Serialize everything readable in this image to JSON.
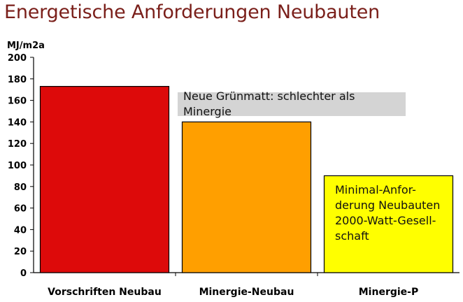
{
  "title": "Energetische Anforderungen Neubauten",
  "unit_label": "MJ/m2a",
  "annotations": {
    "note1": "Neue Grünmatt: schlechter als Minergie",
    "note2": "Minimal-Anfor-\nderung Neubauten\n2000-Watt-Gesell-\nschaft"
  },
  "colors": {
    "Vorschriften Neubau": "#dd0a0a",
    "Minergie-Neubau": "#ff9f00",
    "Minergie-P": "#ffff00",
    "title": "#7a1f1a",
    "note_bg": "#d4d4d4"
  },
  "chart_data": {
    "type": "bar",
    "categories": [
      "Vorschriften Neubau",
      "Minergie-Neubau",
      "Minergie-P"
    ],
    "values": [
      173,
      140,
      90
    ],
    "title": "Energetische Anforderungen Neubauten",
    "xlabel": "",
    "ylabel": "MJ/m2a",
    "ylim": [
      0,
      200
    ],
    "yticks": [
      0,
      20,
      40,
      60,
      80,
      100,
      120,
      140,
      160,
      180,
      200
    ],
    "grid": false,
    "legend": "none"
  }
}
